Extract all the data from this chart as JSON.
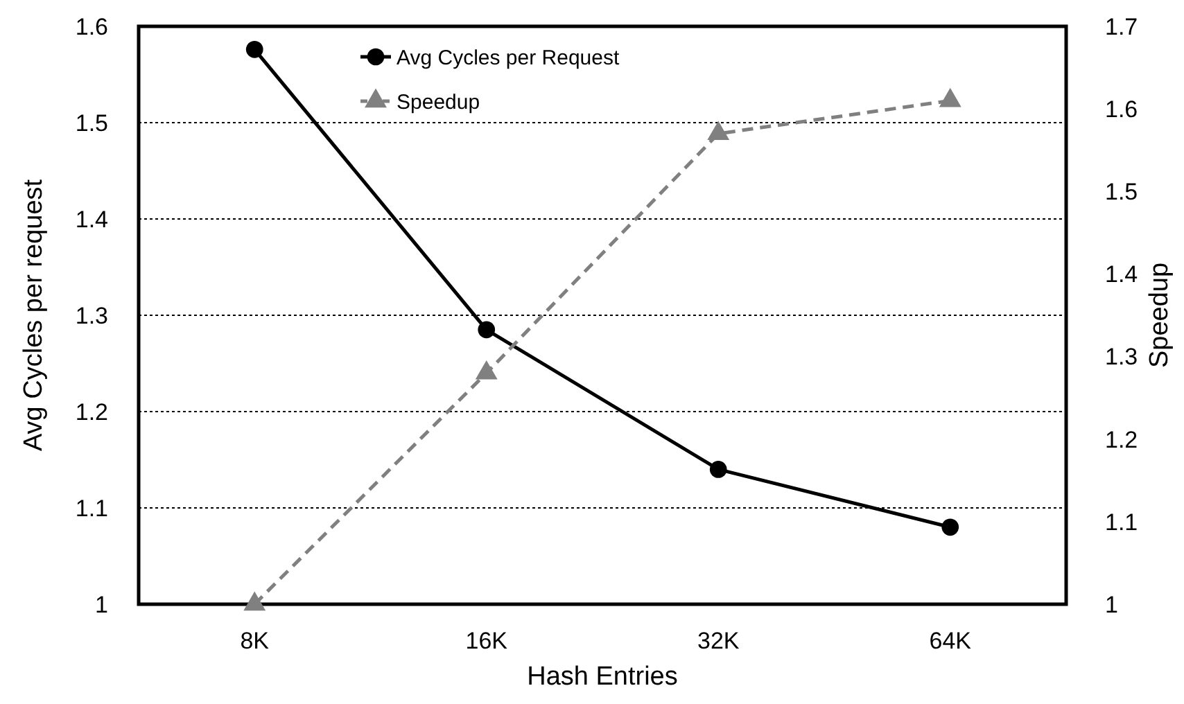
{
  "chart_data": {
    "type": "line",
    "xlabel": "Hash Entries",
    "ylabel": "Avg Cycles per request",
    "y2label": "Speedup",
    "categories": [
      "8K",
      "16K",
      "32K",
      "64K"
    ],
    "series": [
      {
        "name": "Avg Cycles per Request",
        "color": "#000000",
        "values": [
          1.576,
          1.285,
          1.14,
          1.08
        ],
        "marker": "circle",
        "line_style": "solid"
      },
      {
        "name": "Speedup",
        "color": "#808080",
        "values": [
          1.0,
          1.28,
          1.57,
          1.61
        ],
        "axis": "y2",
        "marker": "triangle",
        "line_style": "dashed"
      }
    ],
    "ylim": [
      1,
      1.6
    ],
    "yticks": [
      {
        "value": 1,
        "label": "1"
      },
      1.1,
      1.2,
      1.3,
      1.4,
      1.5,
      1.6
    ],
    "y2lim": [
      1,
      1.7
    ],
    "y2ticks": [
      {
        "value": 1,
        "label": "1"
      },
      1.1,
      1.2,
      1.3,
      1.4,
      1.5,
      1.6,
      1.7
    ],
    "grid": "y",
    "legend": "top"
  }
}
